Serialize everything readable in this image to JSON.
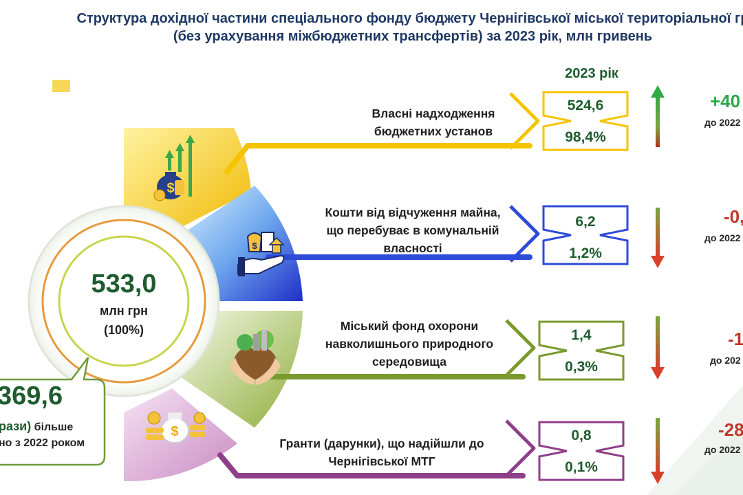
{
  "header": {
    "title_line1": "Структура дохідної частини спеціального фонду бюджету Чернігівської міської територіальної гр",
    "title_line2_a": "(без урахування міжбюджетних трансфертів) ",
    "title_line2_b": "за 2023 рік",
    "title_line2_c": ", млн гривень"
  },
  "year_label": "2023 рік",
  "center": {
    "value": "533,0",
    "unit": "млн грн",
    "share": "(100%)"
  },
  "bubble": {
    "value": "369,6",
    "line1_hl": "рази)",
    "line1_rest": " більше",
    "line2": "но з 2022 роком"
  },
  "colors": {
    "yellow": "#f5c400",
    "blue": "#2e4ad8",
    "green": "#7a9a2e",
    "purple": "#8e3f8a",
    "value_text": "#1e5c2e",
    "increase": "#2aa84a",
    "decrease": "#c0392b"
  },
  "chart_data": {
    "type": "table",
    "title": "Структура дохідної частини спеціального фонду бюджету Чернігівської міської територіальної гр (без урахування міжбюджетних трансфертів) за 2023 рік, млн гривень",
    "total": 533.0,
    "categories": [
      "Власні надходження бюджетних установ",
      "Кошти від відчуження майна, що перебуває в комунальній власності",
      "Міський фонд охорони навколишнього природного середовища",
      "Гранти (дарунки), що надійшли до Чернігівської МТГ"
    ],
    "series": [
      {
        "name": "2023 рік",
        "values": [
          524.6,
          6.2,
          1.4,
          0.8
        ]
      }
    ],
    "shares_percent": [
      98.4,
      1.2,
      0.3,
      0.1
    ]
  },
  "rows": [
    {
      "label_lines": [
        "Власні надходження",
        "бюджетних установ"
      ],
      "value": "524,6",
      "share": "98,4%",
      "change": "+40",
      "change_sub": "до 2022",
      "direction": "up",
      "color": "#f5c400",
      "icon": "money-growth-icon"
    },
    {
      "label_lines": [
        "Кошти від відчуження майна,",
        "що перебуває в комунальній",
        "власності"
      ],
      "value": "6,2",
      "share": "1,2%",
      "change": "-0,",
      "change_sub": "до 2022",
      "direction": "down",
      "color": "#2e4ad8",
      "icon": "property-sale-icon"
    },
    {
      "label_lines": [
        "Міський фонд охорони",
        "навколишнього природного",
        "середовища"
      ],
      "value": "1,4",
      "share": "0,3%",
      "change": "-1",
      "change_sub": "до 202",
      "direction": "down",
      "color": "#7a9a2e",
      "icon": "environment-icon"
    },
    {
      "label_lines": [
        "Гранти (дарунки), що надійшли до",
        "Чернігівської МТГ"
      ],
      "value": "0,8",
      "share": "0,1%",
      "change": "-28",
      "change_sub": "до 2022",
      "direction": "down",
      "color": "#8e3f8a",
      "icon": "grant-money-icon"
    }
  ]
}
